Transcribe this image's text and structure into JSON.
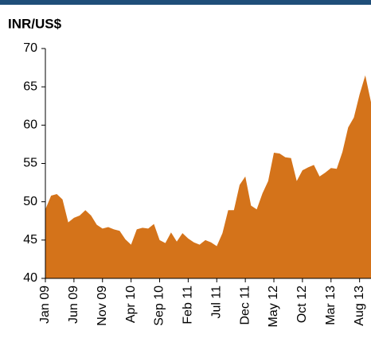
{
  "chart_data": {
    "type": "area",
    "title": "INR/US$",
    "color": "#d4731a",
    "categories": [
      "Jan 09",
      null,
      null,
      null,
      null,
      "Jun 09",
      null,
      null,
      null,
      null,
      "Nov 09",
      null,
      null,
      null,
      null,
      "Apr 10",
      null,
      null,
      null,
      null,
      "Sep 10",
      null,
      null,
      null,
      null,
      "Feb 11",
      null,
      null,
      null,
      null,
      "Jul 11",
      null,
      null,
      null,
      null,
      "Dec 11",
      null,
      null,
      null,
      null,
      "May 12",
      null,
      null,
      null,
      null,
      "Oct 12",
      null,
      null,
      null,
      null,
      "Mar 13",
      null,
      null,
      null,
      null,
      "Aug 13",
      null,
      null
    ],
    "values": [
      49,
      50.8,
      51,
      50.3,
      47.3,
      47.9,
      48.2,
      48.9,
      48.2,
      47,
      46.5,
      46.7,
      46.4,
      46.2,
      45.1,
      44.4,
      46.4,
      46.6,
      46.5,
      47.1,
      45,
      44.6,
      46,
      44.8,
      45.9,
      45.2,
      44.7,
      44.4,
      45,
      44.7,
      44.2,
      45.9,
      48.9,
      48.9,
      52.2,
      53.3,
      49.5,
      49,
      51.1,
      52.7,
      56.4,
      56.3,
      55.8,
      55.7,
      52.7,
      54.1,
      54.5,
      54.8,
      53.3,
      53.8,
      54.4,
      54.3,
      56.5,
      59.7,
      61,
      64,
      66.5,
      63
    ],
    "ylim": [
      40,
      70
    ],
    "yticks": [
      40,
      45,
      50,
      55,
      60,
      65,
      70
    ]
  }
}
